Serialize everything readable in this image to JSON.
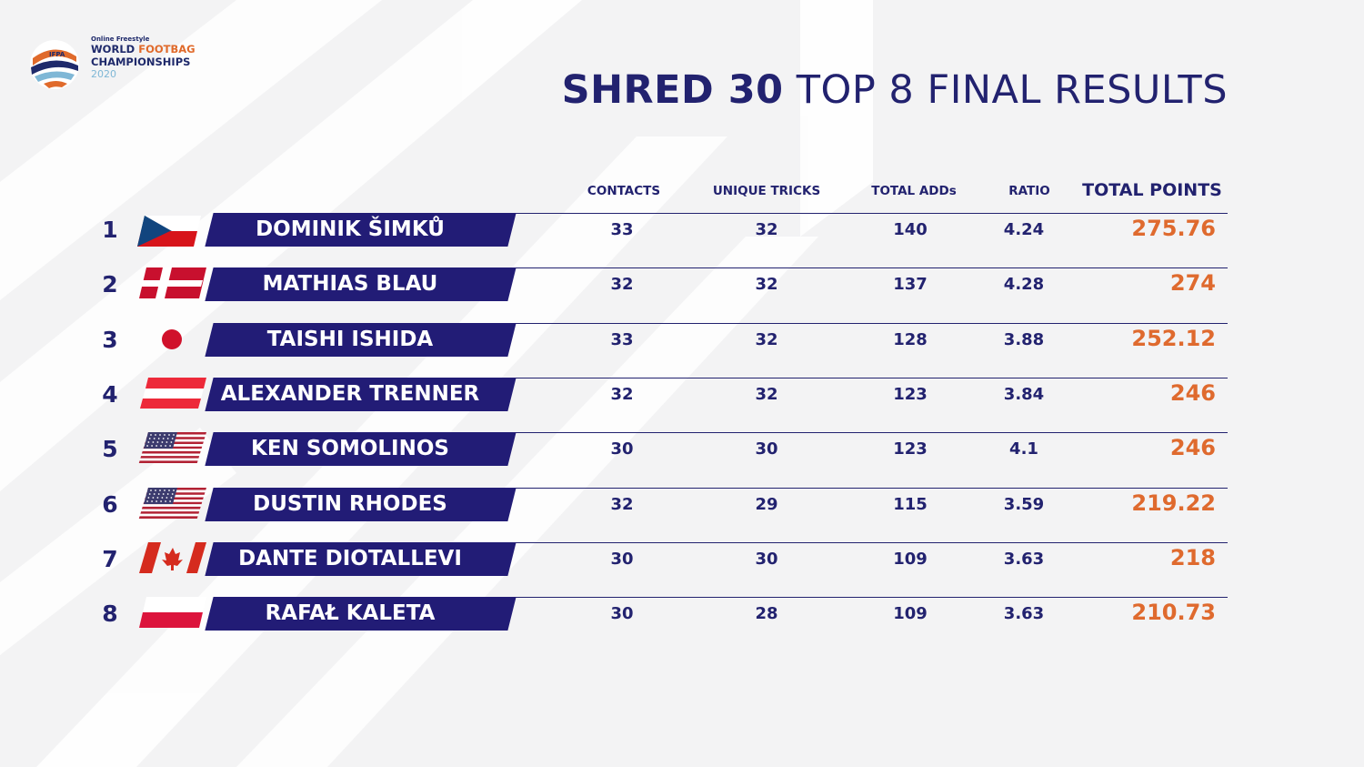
{
  "logo": {
    "small": "Online Freestyle",
    "line1a": "WORLD",
    "line1b": "FOOTBAG",
    "line2": "CHAMPIONSHIPS",
    "year": "2020",
    "mark_text": "IFPA"
  },
  "title": {
    "bold": "SHRED 30",
    "regular": "TOP 8 FINAL RESULTS"
  },
  "columns": {
    "contacts": "CONTACTS",
    "unique_tricks": "UNIQUE TRICKS",
    "total_adds": "TOTAL ADDs",
    "ratio": "RATIO",
    "total_points": "TOTAL POINTS"
  },
  "rows": [
    {
      "rank": "1",
      "name": "DOMINIK ŠIMKŮ",
      "flag": "czech",
      "contacts": "33",
      "unique": "32",
      "adds": "140",
      "ratio": "4.24",
      "points": "275.76"
    },
    {
      "rank": "2",
      "name": "MATHIAS BLAU",
      "flag": "denmark",
      "contacts": "32",
      "unique": "32",
      "adds": "137",
      "ratio": "4.28",
      "points": "274"
    },
    {
      "rank": "3",
      "name": "TAISHI ISHIDA",
      "flag": "japan",
      "contacts": "33",
      "unique": "32",
      "adds": "128",
      "ratio": "3.88",
      "points": "252.12"
    },
    {
      "rank": "4",
      "name": "ALEXANDER TRENNER",
      "flag": "austria",
      "contacts": "32",
      "unique": "32",
      "adds": "123",
      "ratio": "3.84",
      "points": "246"
    },
    {
      "rank": "5",
      "name": "KEN SOMOLINOS",
      "flag": "usa",
      "contacts": "30",
      "unique": "30",
      "adds": "123",
      "ratio": "4.1",
      "points": "246"
    },
    {
      "rank": "6",
      "name": "DUSTIN RHODES",
      "flag": "usa",
      "contacts": "32",
      "unique": "29",
      "adds": "115",
      "ratio": "3.59",
      "points": "219.22"
    },
    {
      "rank": "7",
      "name": "DANTE DIOTALLEVI",
      "flag": "canada",
      "contacts": "30",
      "unique": "30",
      "adds": "109",
      "ratio": "3.63",
      "points": "218"
    },
    {
      "rank": "8",
      "name": "RAFAŁ KALETA",
      "flag": "poland",
      "contacts": "30",
      "unique": "28",
      "adds": "109",
      "ratio": "3.63",
      "points": "210.73"
    }
  ],
  "colors": {
    "navy": "#22226f",
    "bar": "#221c76",
    "orange": "#df6a2e",
    "background": "#f3f3f4"
  }
}
